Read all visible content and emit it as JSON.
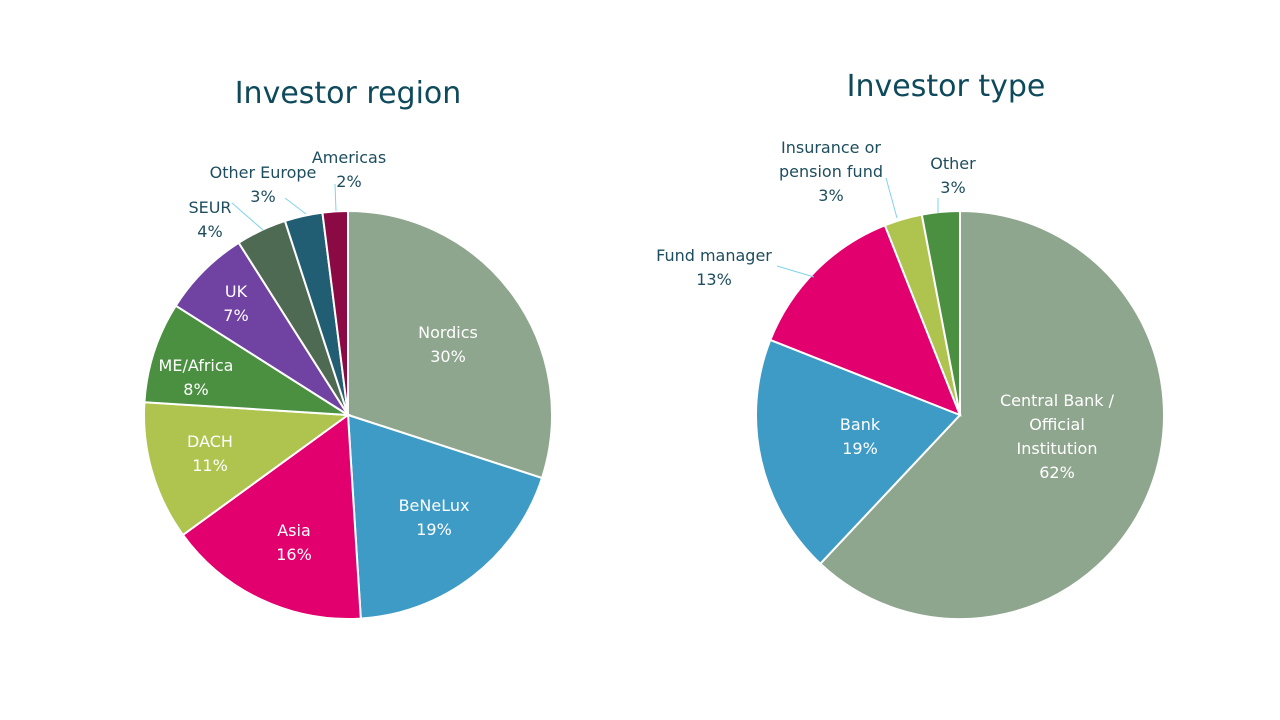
{
  "chart_data": [
    {
      "type": "pie",
      "title": "Investor region",
      "slices": [
        {
          "label_lines": [
            "Nordics"
          ],
          "value": 30,
          "pct_label": "30%",
          "color": "#8fa68e",
          "label_inside": true
        },
        {
          "label_lines": [
            "BeNeLux"
          ],
          "value": 19,
          "pct_label": "19%",
          "color": "#3d9bc6",
          "label_inside": true
        },
        {
          "label_lines": [
            "Asia"
          ],
          "value": 16,
          "pct_label": "16%",
          "color": "#e2006f",
          "label_inside": true
        },
        {
          "label_lines": [
            "DACH"
          ],
          "value": 11,
          "pct_label": "11%",
          "color": "#aec44f",
          "label_inside": true
        },
        {
          "label_lines": [
            "ME/Africa"
          ],
          "value": 8,
          "pct_label": "8%",
          "color": "#4a9040",
          "label_inside": true
        },
        {
          "label_lines": [
            "UK"
          ],
          "value": 7,
          "pct_label": "7%",
          "color": "#7043a3",
          "label_inside": true
        },
        {
          "label_lines": [
            "SEUR"
          ],
          "value": 4,
          "pct_label": "4%",
          "color": "#4e6a53",
          "label_inside": false
        },
        {
          "label_lines": [
            "Other Europe"
          ],
          "value": 3,
          "pct_label": "3%",
          "color": "#225e73",
          "label_inside": false
        },
        {
          "label_lines": [
            "Americas"
          ],
          "value": 2,
          "pct_label": "2%",
          "color": "#8b0a44",
          "label_inside": false
        }
      ]
    },
    {
      "type": "pie",
      "title": "Investor type",
      "slices": [
        {
          "label_lines": [
            "Central Bank /",
            "Official",
            "Institution"
          ],
          "value": 62,
          "pct_label": "62%",
          "color": "#8fa68e",
          "label_inside": true
        },
        {
          "label_lines": [
            "Bank"
          ],
          "value": 19,
          "pct_label": "19%",
          "color": "#3d9bc6",
          "label_inside": true
        },
        {
          "label_lines": [
            "Fund manager"
          ],
          "value": 13,
          "pct_label": "13%",
          "color": "#e2006f",
          "label_inside": false
        },
        {
          "label_lines": [
            "Insurance or",
            "pension fund"
          ],
          "value": 3,
          "pct_label": "3%",
          "color": "#aec44f",
          "label_inside": false
        },
        {
          "label_lines": [
            "Other"
          ],
          "value": 3,
          "pct_label": "3%",
          "color": "#4a9040",
          "label_inside": false
        }
      ]
    }
  ],
  "colors": {
    "title": "#0f4a5c",
    "outside_label": "#1d4d5e",
    "inside_label": "#ffffff",
    "leader_line": "#7fd3ec"
  }
}
